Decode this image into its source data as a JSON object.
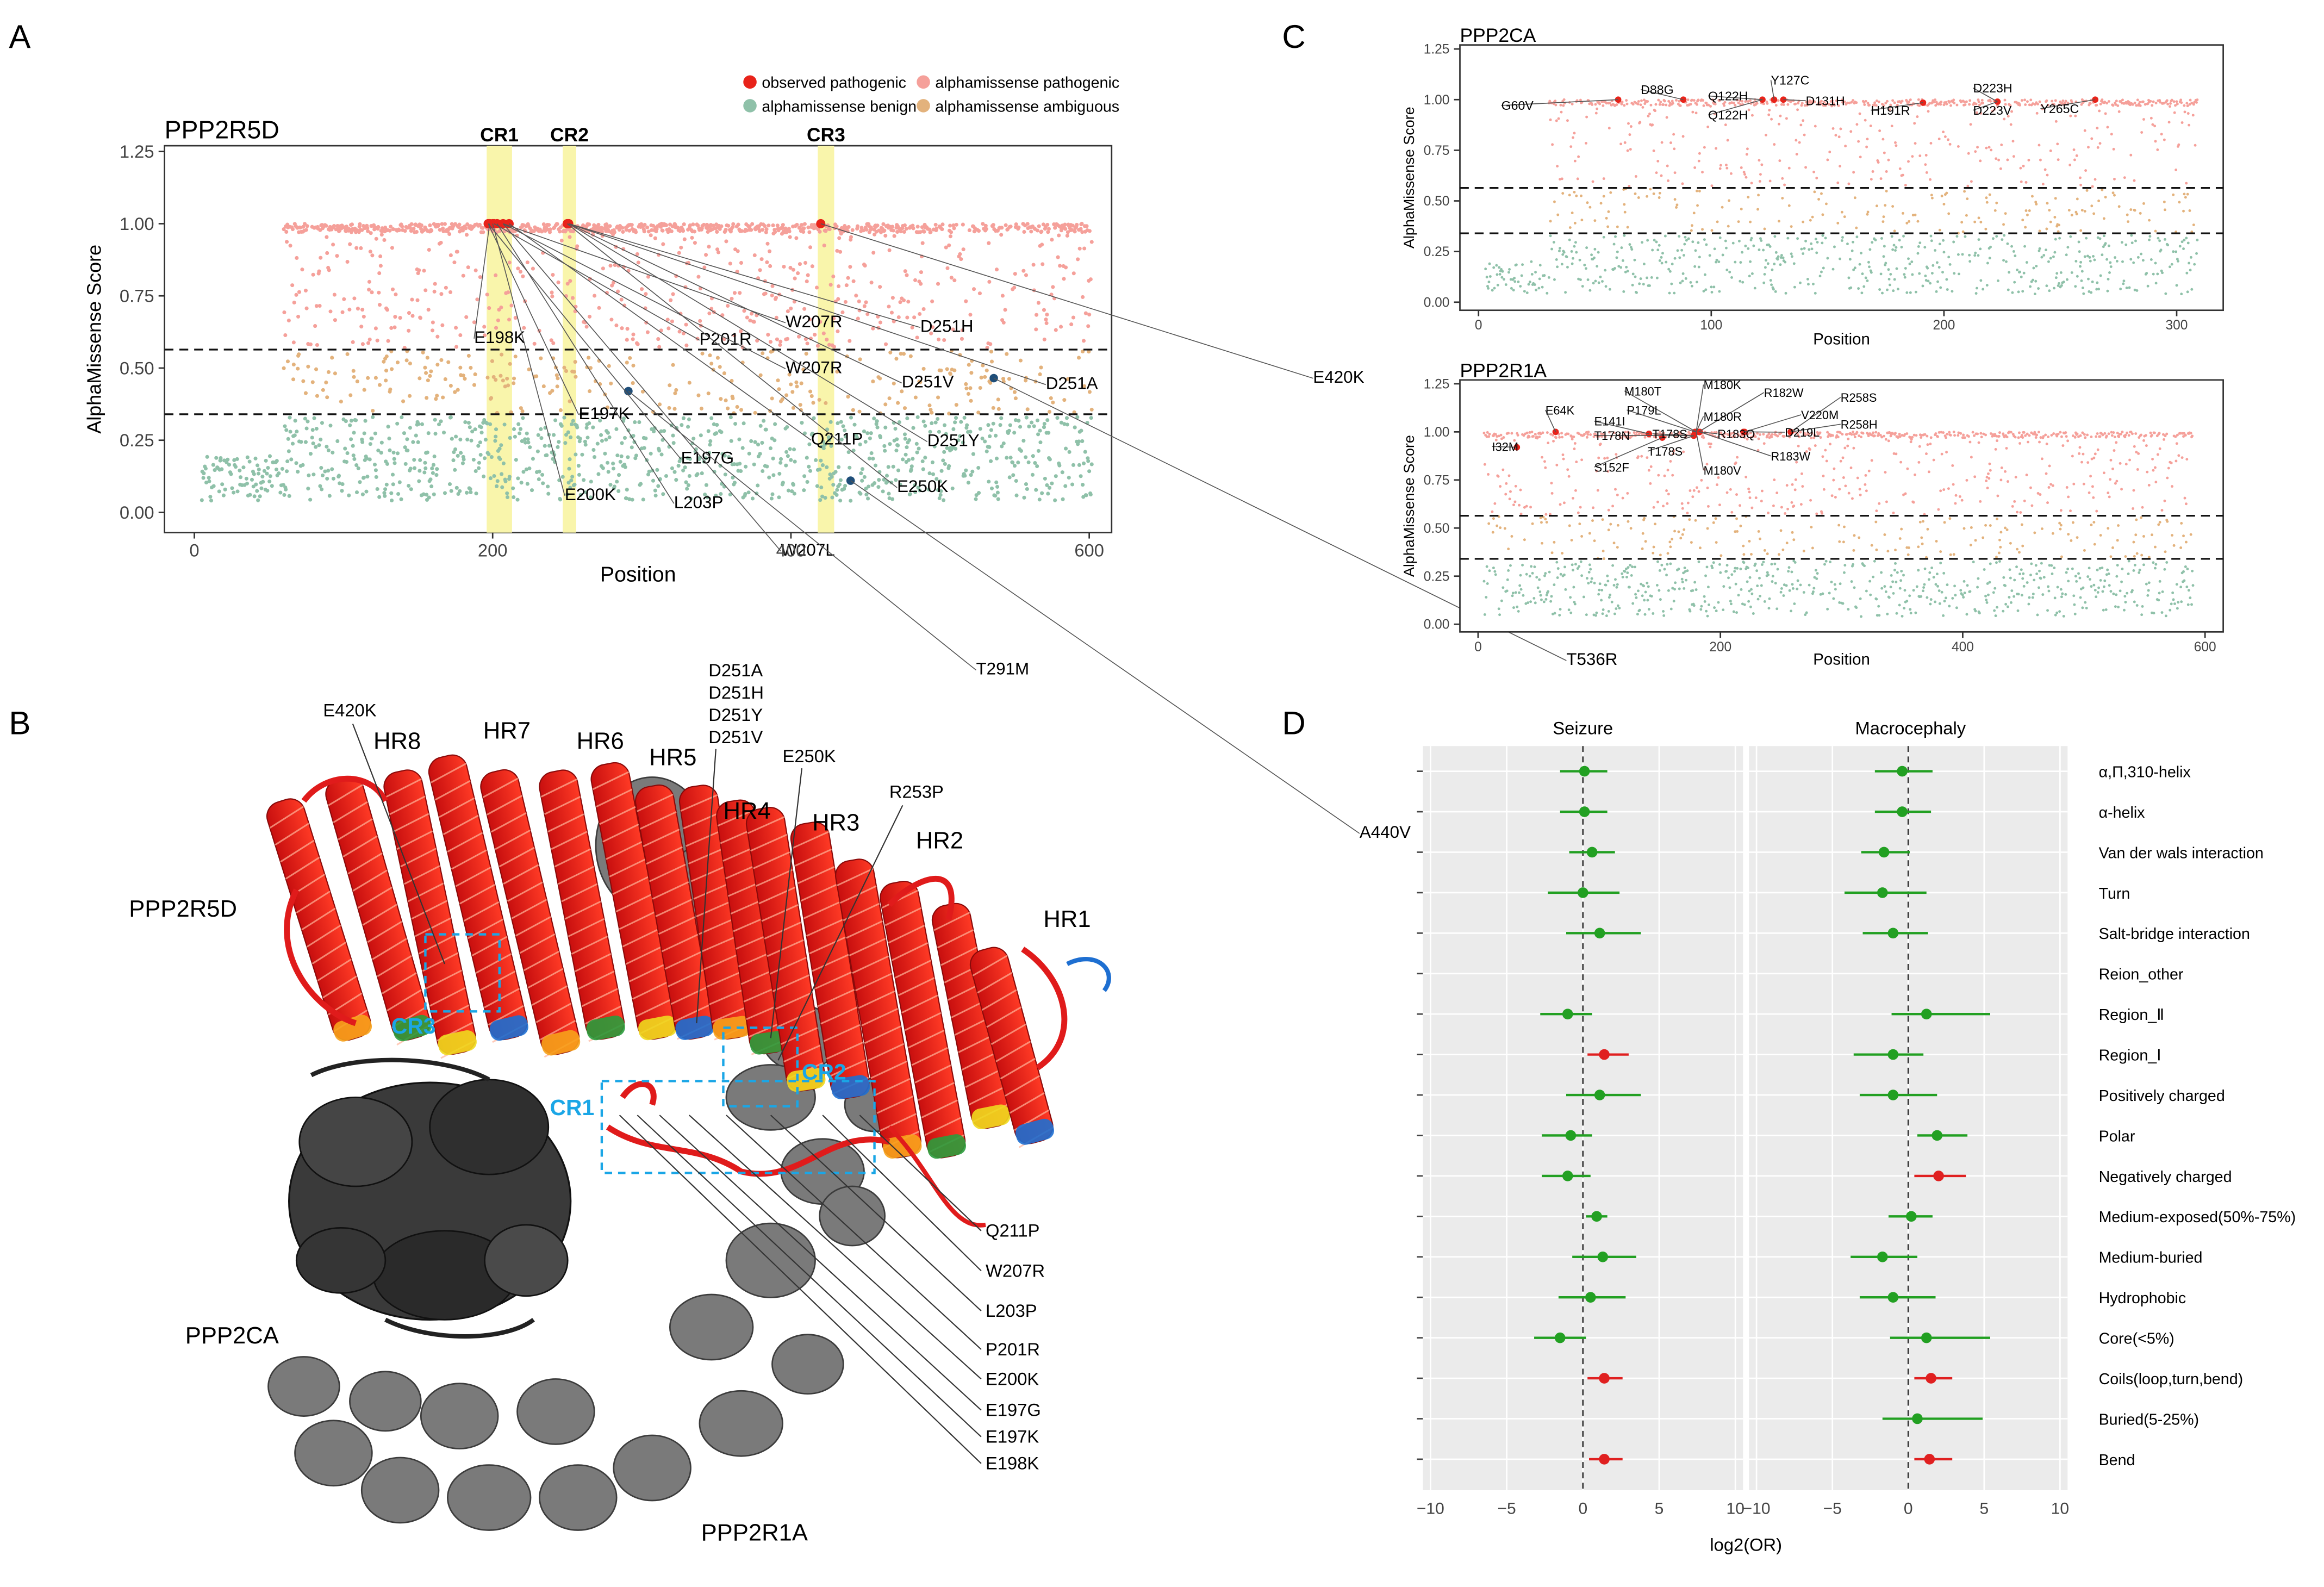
{
  "panel_letters": {
    "A": "A",
    "B": "B",
    "C": "C",
    "D": "D"
  },
  "legend": {
    "observed": "observed pathogenic",
    "am_pathogenic": "alphamissense pathogenic",
    "am_benign": "alphamissense benign",
    "am_ambiguous": "alphamissense ambiguous"
  },
  "colors": {
    "observed": "#e8231a",
    "pathogenic": "#f5a09a",
    "benign": "#8fc1a9",
    "ambiguous": "#e3b27c",
    "highlight": "#f9f5ab",
    "blue_point": "#1f4e79",
    "forest_green": "#22a022",
    "forest_red": "#e02020",
    "facet_bg": "#ebebeb",
    "cr_box": "#1aa6e6"
  },
  "chart_data": [
    {
      "panel": "A",
      "type": "scatter",
      "title": "PPP2R5D",
      "xlabel": "Position",
      "ylabel": "AlphaMissense Score",
      "xlim": [
        -20,
        615
      ],
      "ylim": [
        -0.07,
        1.27
      ],
      "xticks": [
        0,
        200,
        400,
        600
      ],
      "yticks": [
        0.0,
        0.25,
        0.5,
        0.75,
        1.0,
        1.25
      ],
      "thresholds": [
        0.564,
        0.34
      ],
      "regions": [
        {
          "label": "CR1",
          "from": 196,
          "to": 213
        },
        {
          "label": "CR2",
          "from": 247,
          "to": 256
        },
        {
          "label": "CR3",
          "from": 418,
          "to": 429
        }
      ],
      "density_segments": [
        {
          "from": 5,
          "to": 60,
          "benign_min": 0.04,
          "benign_max": 0.2,
          "ambiguous": 0,
          "pathogenic": 0
        },
        {
          "from": 60,
          "to": 490,
          "benign_min": 0.04,
          "benign_max": 0.33,
          "ambiguous": 1,
          "pathogenic": 1
        },
        {
          "from": 490,
          "to": 560,
          "benign_min": 0.04,
          "benign_max": 0.33,
          "ambiguous": 1,
          "pathogenic": 0.6
        },
        {
          "from": 560,
          "to": 602,
          "benign_min": 0.04,
          "benign_max": 0.33,
          "ambiguous": 1,
          "pathogenic": 1
        }
      ],
      "observed_points": [
        {
          "x": 197,
          "y": 1.0,
          "label": "E197K"
        },
        {
          "x": 198,
          "y": 1.0,
          "label": "E198K"
        },
        {
          "x": 200,
          "y": 1.0,
          "label": "E200K"
        },
        {
          "x": 201,
          "y": 1.0,
          "label": "P201R"
        },
        {
          "x": 203,
          "y": 1.0,
          "label": "L203P"
        },
        {
          "x": 207,
          "y": 1.0,
          "label": "W207R"
        },
        {
          "x": 211,
          "y": 1.0,
          "label": "Q211P"
        },
        {
          "x": 250,
          "y": 1.0,
          "label": "E250K"
        },
        {
          "x": 251,
          "y": 1.0,
          "label": "D251H"
        },
        {
          "x": 420,
          "y": 1.0,
          "label": "E420K"
        }
      ],
      "other_points": [
        {
          "x": 291,
          "y": 0.42,
          "label": "T291M"
        },
        {
          "x": 536,
          "y": 0.465,
          "label": "T536R"
        },
        {
          "x": 440,
          "y": 0.11,
          "label": "A440V"
        }
      ],
      "labels": [
        {
          "text": "E198K",
          "lx": 0.204,
          "ly": 0.216,
          "px": 198
        },
        {
          "text": "P201R",
          "lx": 0.301,
          "ly": 0.217,
          "px": 201
        },
        {
          "text": "W207R",
          "lx": 0.338,
          "ly": 0.206,
          "px": 207
        },
        {
          "text": "D251H",
          "lx": 0.396,
          "ly": 0.209,
          "px": 251
        },
        {
          "text": "E197K",
          "lx": 0.249,
          "ly": 0.264,
          "px": 197
        },
        {
          "text": "W207R",
          "lx": 0.338,
          "ly": 0.235,
          "px": 207
        },
        {
          "text": "D251V",
          "lx": 0.388,
          "ly": 0.244,
          "px": 251
        },
        {
          "text": "D251A",
          "lx": 0.45,
          "ly": 0.245,
          "px": 251
        },
        {
          "text": "E420K",
          "lx": 0.565,
          "ly": 0.241,
          "px": 420
        },
        {
          "text": "E197G",
          "lx": 0.293,
          "ly": 0.292,
          "px": 197
        },
        {
          "text": "Q211P",
          "lx": 0.349,
          "ly": 0.28,
          "px": 211
        },
        {
          "text": "D251Y",
          "lx": 0.399,
          "ly": 0.281,
          "px": 251
        },
        {
          "text": "E200K",
          "lx": 0.243,
          "ly": 0.315,
          "px": 200
        },
        {
          "text": "L203P",
          "lx": 0.29,
          "ly": 0.32,
          "px": 203
        },
        {
          "text": "E250K",
          "lx": 0.386,
          "ly": 0.31,
          "px": 250
        },
        {
          "text": "W207L",
          "lx": 0.336,
          "ly": 0.35,
          "px": 207
        },
        {
          "text": "T291M",
          "lx": 0.42,
          "ly": 0.425,
          "px": 291
        },
        {
          "text": "T536R",
          "lx": 0.674,
          "ly": 0.419,
          "px": 536
        },
        {
          "text": "A440V",
          "lx": 0.585,
          "ly": 0.528,
          "px": 440
        }
      ]
    },
    {
      "panel": "C-top",
      "type": "scatter",
      "title": "PPP2CA",
      "xlabel": "Position",
      "ylabel": "AlphaMissense Score",
      "xlim": [
        -8,
        320
      ],
      "ylim": [
        -0.04,
        1.27
      ],
      "xticks": [
        0,
        100,
        200,
        300
      ],
      "yticks": [
        0.0,
        0.25,
        0.5,
        0.75,
        1.0,
        1.25
      ],
      "thresholds": [
        0.564,
        0.34
      ],
      "density_segments": [
        {
          "from": 3,
          "to": 30,
          "benign_min": 0.04,
          "benign_max": 0.2,
          "ambiguous": 0,
          "pathogenic": 0
        },
        {
          "from": 30,
          "to": 309,
          "benign_min": 0.04,
          "benign_max": 0.33,
          "ambiguous": 1,
          "pathogenic": 1
        }
      ],
      "observed_points": [
        {
          "x": 60,
          "y": 1.0
        },
        {
          "x": 88,
          "y": 1.0
        },
        {
          "x": 122,
          "y": 1.0
        },
        {
          "x": 127,
          "y": 1.0
        },
        {
          "x": 131,
          "y": 1.0
        },
        {
          "x": 191,
          "y": 0.985
        },
        {
          "x": 223,
          "y": 0.99
        },
        {
          "x": 265,
          "y": 1.0
        }
      ],
      "labels": [
        {
          "text": "D88G",
          "lx": 0.706,
          "ly": 0.059,
          "px": 88
        },
        {
          "text": "Y127C",
          "lx": 0.762,
          "ly": 0.053,
          "px": 127
        },
        {
          "text": "D223H",
          "lx": 0.849,
          "ly": 0.058,
          "px": 223
        },
        {
          "text": "G60V",
          "lx": 0.646,
          "ly": 0.069,
          "px": 60
        },
        {
          "text": "Q122H",
          "lx": 0.735,
          "ly": 0.063,
          "px": 122
        },
        {
          "text": "D131H",
          "lx": 0.777,
          "ly": 0.066,
          "px": 131
        },
        {
          "text": "Q122H",
          "lx": 0.735,
          "ly": 0.075,
          "px": 122
        },
        {
          "text": "H191R",
          "lx": 0.805,
          "ly": 0.072,
          "px": 191
        },
        {
          "text": "D223V",
          "lx": 0.849,
          "ly": 0.072,
          "px": 223
        },
        {
          "text": "Y265C",
          "lx": 0.878,
          "ly": 0.071,
          "px": 265
        }
      ]
    },
    {
      "panel": "C-bottom",
      "type": "scatter",
      "title": "PPP2R1A",
      "xlabel": "Position",
      "ylabel": "AlphaMissense Score",
      "xlim": [
        -15,
        615
      ],
      "ylim": [
        -0.04,
        1.27
      ],
      "xticks": [
        0,
        200,
        400,
        600
      ],
      "yticks": [
        0.0,
        0.25,
        0.5,
        0.75,
        1.0,
        1.25
      ],
      "thresholds": [
        0.564,
        0.34
      ],
      "density_segments": [
        {
          "from": 5,
          "to": 590,
          "benign_min": 0.04,
          "benign_max": 0.33,
          "ambiguous": 1,
          "pathogenic": 1
        }
      ],
      "observed_points": [
        {
          "x": 32,
          "y": 0.92
        },
        {
          "x": 64,
          "y": 1.0
        },
        {
          "x": 141,
          "y": 0.99
        },
        {
          "x": 152,
          "y": 0.97
        },
        {
          "x": 178,
          "y": 0.98
        },
        {
          "x": 179,
          "y": 1.0
        },
        {
          "x": 180,
          "y": 1.0
        },
        {
          "x": 182,
          "y": 1.0
        },
        {
          "x": 183,
          "y": 1.0
        },
        {
          "x": 219,
          "y": 1.0
        },
        {
          "x": 220,
          "y": 1.0
        },
        {
          "x": 258,
          "y": 1.0
        }
      ],
      "labels": [
        {
          "text": "M180T",
          "lx": 0.699,
          "ly": 0.249,
          "px": 180
        },
        {
          "text": "M180K",
          "lx": 0.733,
          "ly": 0.245,
          "px": 180
        },
        {
          "text": "R182W",
          "lx": 0.759,
          "ly": 0.25,
          "px": 182
        },
        {
          "text": "R258S",
          "lx": 0.792,
          "ly": 0.253,
          "px": 258
        },
        {
          "text": "E64K",
          "lx": 0.665,
          "ly": 0.261,
          "px": 64
        },
        {
          "text": "P179L",
          "lx": 0.7,
          "ly": 0.261,
          "px": 179
        },
        {
          "text": "M180R",
          "lx": 0.733,
          "ly": 0.265,
          "px": 180
        },
        {
          "text": "V220M",
          "lx": 0.775,
          "ly": 0.264,
          "px": 220
        },
        {
          "text": "E141I",
          "lx": 0.686,
          "ly": 0.268,
          "px": 141
        },
        {
          "text": "R258H",
          "lx": 0.792,
          "ly": 0.27,
          "px": 258
        },
        {
          "text": "T178N",
          "lx": 0.686,
          "ly": 0.277,
          "px": 178
        },
        {
          "text": "T178S",
          "lx": 0.711,
          "ly": 0.276,
          "px": 178
        },
        {
          "text": "R183Q",
          "lx": 0.739,
          "ly": 0.276,
          "px": 183
        },
        {
          "text": "D219L",
          "lx": 0.768,
          "ly": 0.275,
          "px": 219
        },
        {
          "text": "I32M",
          "lx": 0.642,
          "ly": 0.284,
          "px": 32
        },
        {
          "text": "T178S",
          "lx": 0.709,
          "ly": 0.287,
          "px": 178
        },
        {
          "text": "R183W",
          "lx": 0.762,
          "ly": 0.29,
          "px": 183
        },
        {
          "text": "S152F",
          "lx": 0.686,
          "ly": 0.297,
          "px": 152
        },
        {
          "text": "M180V",
          "lx": 0.733,
          "ly": 0.299,
          "px": 180
        }
      ]
    },
    {
      "panel": "D",
      "type": "forest",
      "xlabel": "log2(OR)",
      "xlim": [
        -10.5,
        10.5
      ],
      "xticks": [
        -10,
        -5,
        0,
        5,
        10
      ],
      "facets": [
        "Seizure",
        "Macrocephaly"
      ],
      "rows": [
        "α,Π,310-helix",
        "α-helix",
        "Van der wals interaction",
        "Turn",
        "Salt-bridge interaction",
        "Reion_other",
        "Region_Ⅱ",
        "Region_Ⅰ",
        "Positively charged",
        "Polar",
        "Negatively charged",
        "Medium-exposed(50%-75%)",
        "Medium-buried",
        "Hydrophobic",
        "Core(<5%)",
        "Coils(loop,turn,bend)",
        "Buried(5-25%)",
        "Bend"
      ],
      "estimates": {
        "Seizure": [
          {
            "est": 0.1,
            "lo": -1.5,
            "hi": 1.6,
            "sig": false
          },
          {
            "est": 0.1,
            "lo": -1.5,
            "hi": 1.6,
            "sig": false
          },
          {
            "est": 0.6,
            "lo": -0.9,
            "hi": 2.1,
            "sig": false
          },
          {
            "est": 0.0,
            "lo": -2.3,
            "hi": 2.4,
            "sig": false
          },
          {
            "est": 1.1,
            "lo": -1.1,
            "hi": 3.8,
            "sig": false
          },
          null,
          {
            "est": -1.0,
            "lo": -2.8,
            "hi": 0.6,
            "sig": false
          },
          {
            "est": 1.4,
            "lo": 0.3,
            "hi": 3.0,
            "sig": true
          },
          {
            "est": 1.1,
            "lo": -1.1,
            "hi": 3.8,
            "sig": false
          },
          {
            "est": -0.8,
            "lo": -2.7,
            "hi": 0.6,
            "sig": false
          },
          {
            "est": -1.0,
            "lo": -2.7,
            "hi": 0.5,
            "sig": false
          },
          {
            "est": 0.9,
            "lo": 0.2,
            "hi": 1.6,
            "sig": false
          },
          {
            "est": 1.3,
            "lo": -0.7,
            "hi": 3.5,
            "sig": false
          },
          {
            "est": 0.5,
            "lo": -1.6,
            "hi": 2.8,
            "sig": false
          },
          {
            "est": -1.5,
            "lo": -3.2,
            "hi": 0.2,
            "sig": false
          },
          {
            "est": 1.4,
            "lo": 0.3,
            "hi": 2.6,
            "sig": true
          },
          null,
          {
            "est": 1.4,
            "lo": 0.4,
            "hi": 2.6,
            "sig": true
          }
        ],
        "Macrocephaly": [
          {
            "est": -0.4,
            "lo": -2.2,
            "hi": 1.6,
            "sig": false
          },
          {
            "est": -0.4,
            "lo": -2.2,
            "hi": 1.5,
            "sig": false
          },
          {
            "est": -1.6,
            "lo": -3.1,
            "hi": 0.1,
            "sig": false
          },
          {
            "est": -1.7,
            "lo": -4.2,
            "hi": 1.2,
            "sig": false
          },
          {
            "est": -1.0,
            "lo": -3.0,
            "hi": 1.3,
            "sig": false
          },
          null,
          {
            "est": 1.2,
            "lo": -1.1,
            "hi": 5.4,
            "sig": false
          },
          {
            "est": -1.0,
            "lo": -3.6,
            "hi": 1.0,
            "sig": false
          },
          {
            "est": -1.0,
            "lo": -3.2,
            "hi": 1.9,
            "sig": false
          },
          {
            "est": 1.9,
            "lo": 0.6,
            "hi": 3.9,
            "sig": false
          },
          {
            "est": 2.0,
            "lo": 0.4,
            "hi": 3.8,
            "sig": true
          },
          {
            "est": 0.2,
            "lo": -1.3,
            "hi": 1.6,
            "sig": false
          },
          {
            "est": -1.7,
            "lo": -3.8,
            "hi": 0.6,
            "sig": false
          },
          {
            "est": -1.0,
            "lo": -3.2,
            "hi": 1.8,
            "sig": false
          },
          {
            "est": 1.2,
            "lo": -1.2,
            "hi": 5.4,
            "sig": false
          },
          {
            "est": 1.5,
            "lo": 0.4,
            "hi": 2.9,
            "sig": true
          },
          {
            "est": 0.6,
            "lo": -1.7,
            "hi": 4.9,
            "sig": false
          },
          {
            "est": 1.4,
            "lo": 0.4,
            "hi": 2.9,
            "sig": true
          }
        ]
      }
    }
  ],
  "structure": {
    "chain_labels": {
      "r5d": "PPP2R5D",
      "ca": "PPP2CA",
      "r1a": "PPP2R1A"
    },
    "hr_labels": [
      "HR8",
      "HR7",
      "HR6",
      "HR5",
      "HR4",
      "HR3",
      "HR2",
      "HR1"
    ],
    "cr_labels": [
      "CR1",
      "CR2",
      "CR3"
    ],
    "top_labels": {
      "e420k": "E420K",
      "d251": [
        "D251A",
        "D251H",
        "D251Y",
        "D251V"
      ],
      "e250k": "E250K",
      "r253p": "R253P"
    },
    "right_labels": [
      "Q211P",
      "W207R",
      "L203P",
      "P201R",
      "E200K",
      "E197G",
      "E197K",
      "E198K"
    ]
  }
}
